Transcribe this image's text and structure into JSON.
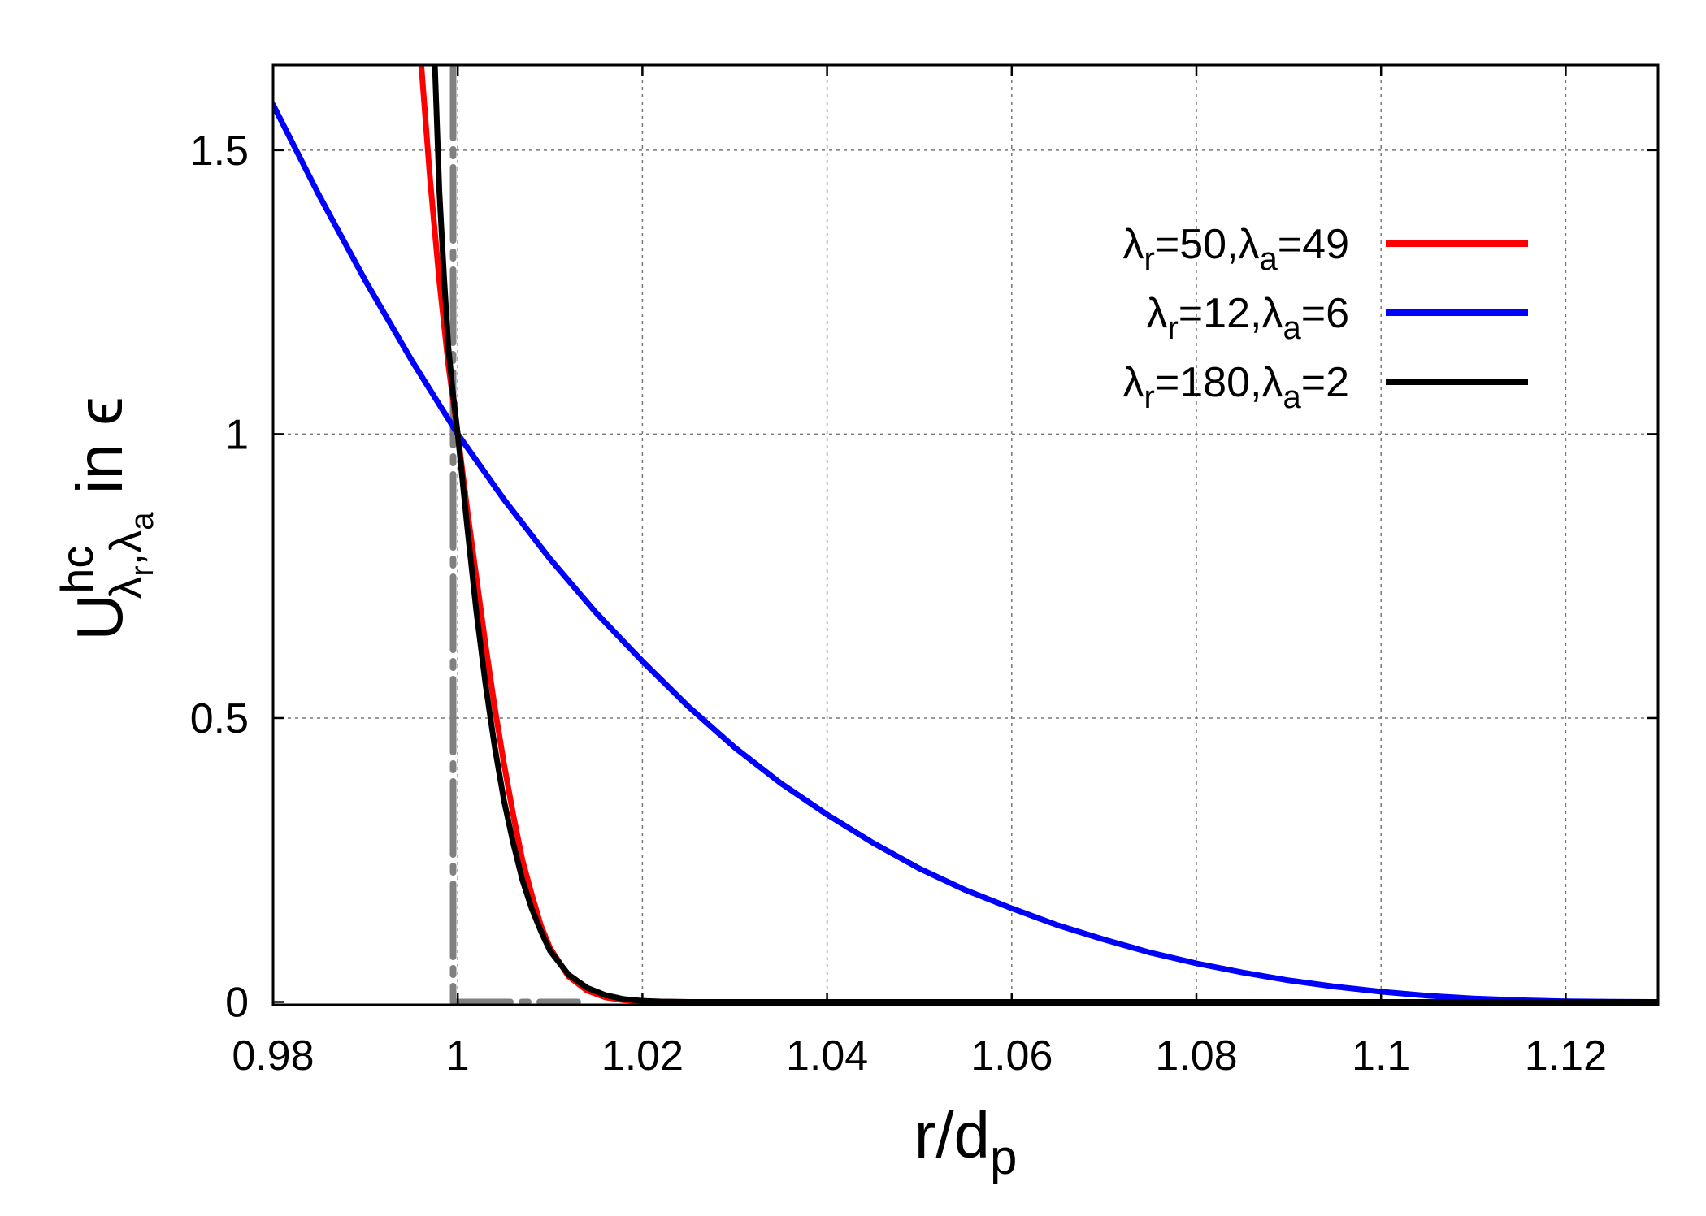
{
  "chart_data": {
    "type": "line",
    "xlabel": "r/d",
    "xlabel_sub": "p",
    "ylabel": {
      "main": "U",
      "sup": "hc",
      "sub_a": "λ",
      "sub_a_sub": "r",
      "sep": ",",
      "sub_b": "λ",
      "sub_b_sub": "a",
      "suffix": " in ϵ"
    },
    "xlim": [
      0.98,
      1.13
    ],
    "ylim": [
      -0.005,
      1.65
    ],
    "x_ticks": [
      0.98,
      1.0,
      1.02,
      1.04,
      1.06,
      1.08,
      1.1,
      1.12
    ],
    "x_tick_labels": [
      "0.98",
      "1",
      "1.02",
      "1.04",
      "1.06",
      "1.08",
      "1.1",
      "1.12"
    ],
    "y_ticks": [
      0,
      0.5,
      1,
      1.5
    ],
    "y_tick_labels": [
      "0",
      "0.5",
      "1",
      "1.5"
    ],
    "grid": true,
    "legend_position": "top-right",
    "series": [
      {
        "name": "λr=50,λa=49",
        "legend": [
          {
            "t": "λ",
            "s": false
          },
          {
            "t": "r",
            "s": true
          },
          {
            "t": "=50,",
            "s": false
          },
          {
            "t": "λ",
            "s": false
          },
          {
            "t": "a",
            "s": true
          },
          {
            "t": "=49",
            "s": false
          }
        ],
        "color": "#ff0000",
        "x": [
          0.996,
          0.997,
          0.998,
          0.999,
          1.0,
          1.001,
          1.002,
          1.003,
          1.004,
          1.005,
          1.006,
          1.007,
          1.008,
          1.009,
          1.01,
          1.012,
          1.014,
          1.016,
          1.018,
          1.02,
          1.022,
          1.025,
          1.03,
          1.13
        ],
        "y": [
          1.66,
          1.45,
          1.27,
          1.12,
          1.0,
          0.87,
          0.75,
          0.63,
          0.52,
          0.42,
          0.33,
          0.25,
          0.19,
          0.135,
          0.095,
          0.045,
          0.02,
          0.008,
          0.003,
          0.001,
          0.0003,
          0.0,
          0.0,
          0.0
        ]
      },
      {
        "name": "λr=12,λa=6",
        "legend": [
          {
            "t": "λ",
            "s": false
          },
          {
            "t": "r",
            "s": true
          },
          {
            "t": "=12,",
            "s": false
          },
          {
            "t": "λ",
            "s": false
          },
          {
            "t": "a",
            "s": true
          },
          {
            "t": "=6",
            "s": false
          }
        ],
        "color": "#0000ff",
        "x": [
          0.98,
          0.985,
          0.99,
          0.995,
          1.0,
          1.005,
          1.01,
          1.015,
          1.02,
          1.025,
          1.03,
          1.035,
          1.04,
          1.045,
          1.05,
          1.055,
          1.06,
          1.065,
          1.07,
          1.075,
          1.08,
          1.085,
          1.09,
          1.095,
          1.1,
          1.105,
          1.11,
          1.115,
          1.12,
          1.125,
          1.13
        ],
        "y": [
          1.58,
          1.42,
          1.27,
          1.13,
          1.0,
          0.885,
          0.78,
          0.685,
          0.6,
          0.52,
          0.448,
          0.385,
          0.33,
          0.28,
          0.235,
          0.197,
          0.165,
          0.135,
          0.11,
          0.087,
          0.068,
          0.052,
          0.038,
          0.027,
          0.018,
          0.011,
          0.006,
          0.003,
          0.001,
          0.0003,
          0.0
        ]
      },
      {
        "name": "λr=180,λa=2",
        "legend": [
          {
            "t": "λ",
            "s": false
          },
          {
            "t": "r",
            "s": true
          },
          {
            "t": "=180,",
            "s": false
          },
          {
            "t": "λ",
            "s": false
          },
          {
            "t": "a",
            "s": true
          },
          {
            "t": "=2",
            "s": false
          }
        ],
        "color": "#000000",
        "x": [
          0.9975,
          0.998,
          0.9985,
          0.999,
          0.9995,
          1.0,
          1.001,
          1.002,
          1.003,
          1.004,
          1.005,
          1.006,
          1.007,
          1.008,
          1.009,
          1.01,
          1.012,
          1.014,
          1.016,
          1.018,
          1.02,
          1.022,
          1.025,
          1.03,
          1.13
        ],
        "y": [
          1.66,
          1.43,
          1.28,
          1.15,
          1.07,
          1.0,
          0.84,
          0.69,
          0.56,
          0.45,
          0.355,
          0.28,
          0.215,
          0.165,
          0.125,
          0.09,
          0.048,
          0.025,
          0.012,
          0.005,
          0.002,
          0.0007,
          0.0,
          0.0,
          0.0
        ]
      },
      {
        "name": "",
        "color": "#808080",
        "style": "dashdot",
        "x": [
          0.9995,
          0.9995,
          1.013
        ],
        "y": [
          1.65,
          0.0,
          0.0
        ]
      }
    ]
  }
}
